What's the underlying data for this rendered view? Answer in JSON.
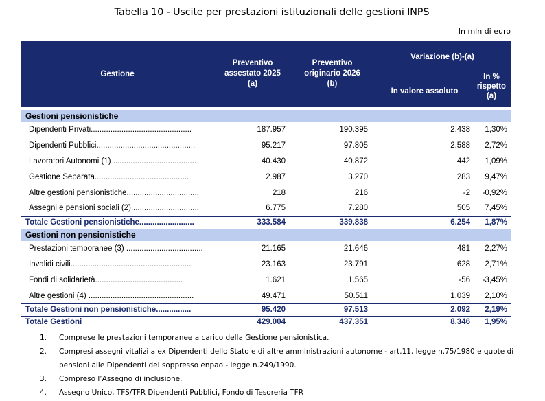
{
  "title": "Tabella 10 - Uscite per prestazioni istituzionali delle gestioni INPS",
  "unit": "In mln di euro",
  "header": {
    "gestione": "Gestione",
    "prev2025": [
      "Preventivo",
      "assestato 2025",
      "(a)"
    ],
    "prev2026": [
      "Preventivo",
      "originario 2026",
      "(b)"
    ],
    "variazione": "Variazione (b)-(a)",
    "valore_assoluto": "In valore assoluto",
    "percent": [
      "In %",
      "rispetto",
      "(a)"
    ]
  },
  "sections": [
    {
      "title": "Gestioni pensionistiche",
      "rows": [
        {
          "name": "Dipendenti Privati..............................................",
          "a": "187.957",
          "b": "190.395",
          "abs": "2.438",
          "pct": "1,30%"
        },
        {
          "name": "Dipendenti Pubblici.............................................",
          "a": "95.217",
          "b": "97.805",
          "abs": "2.588",
          "pct": "2,72%"
        },
        {
          "name": "Lavoratori Autonomi (1) ......................................",
          "a": "40.430",
          "b": "40.872",
          "abs": "442",
          "pct": "1,09%"
        },
        {
          "name": "Gestione Separata...........................................",
          "a": "2.987",
          "b": "3.270",
          "abs": "283",
          "pct": "9,47%"
        },
        {
          "name": "Altre gestioni pensionistiche.................................",
          "a": "218",
          "b": "216",
          "abs": "-2",
          "pct": "-0,92%"
        },
        {
          "name": "Assegni e pensioni sociali (2)...............................",
          "a": "6.775",
          "b": "7.280",
          "abs": "505",
          "pct": "7,45%"
        }
      ],
      "total": {
        "name": "Totale Gestioni pensionistiche.........................",
        "a": "333.584",
        "b": "339.838",
        "abs": "6.254",
        "pct": "1,87%"
      }
    },
    {
      "title": "Gestioni non pensionistiche",
      "rows": [
        {
          "name": "Prestazioni temporanee (3) ...................................",
          "a": "21.165",
          "b": "21.646",
          "abs": "481",
          "pct": "2,27%"
        },
        {
          "name": "Invalidi civili.......................................................",
          "a": "23.163",
          "b": "23.791",
          "abs": "628",
          "pct": "2,71%"
        },
        {
          "name": "Fondi di solidarietà........................................",
          "a": "1.621",
          "b": "1.565",
          "abs": "-56",
          "pct": "-3,45%"
        },
        {
          "name": "Altre gestioni (4) ................................................",
          "a": "49.471",
          "b": "50.511",
          "abs": "1.039",
          "pct": "2,10%"
        }
      ],
      "total": {
        "name": "Totale Gestioni non pensionistiche................",
        "a": "95.420",
        "b": "97.513",
        "abs": "2.092",
        "pct": "2,19%"
      }
    }
  ],
  "grand_total": {
    "name": "Totale Gestioni",
    "a": "429.004",
    "b": "437.351",
    "abs": "8.346",
    "pct": "1,95%"
  },
  "notes": [
    {
      "n": "1.",
      "text": "Comprese le prestazioni temporanee a carico della Gestione pensionistica."
    },
    {
      "n": "2.",
      "text": "Compresi assegni vitalizi a ex Dipendenti dello Stato e di altre amministrazioni autonome - art.11, legge n.75/1980 e quote di pensioni alle Dipendenti del soppresso enpao - legge n.249/1990."
    },
    {
      "n": "3.",
      "text": "Compreso l’Assegno di inclusione."
    },
    {
      "n": "4.",
      "text": "Assegno Unico, TFS/TFR Dipendenti Pubblici, Fondo di Tesoreria TFR"
    }
  ]
}
